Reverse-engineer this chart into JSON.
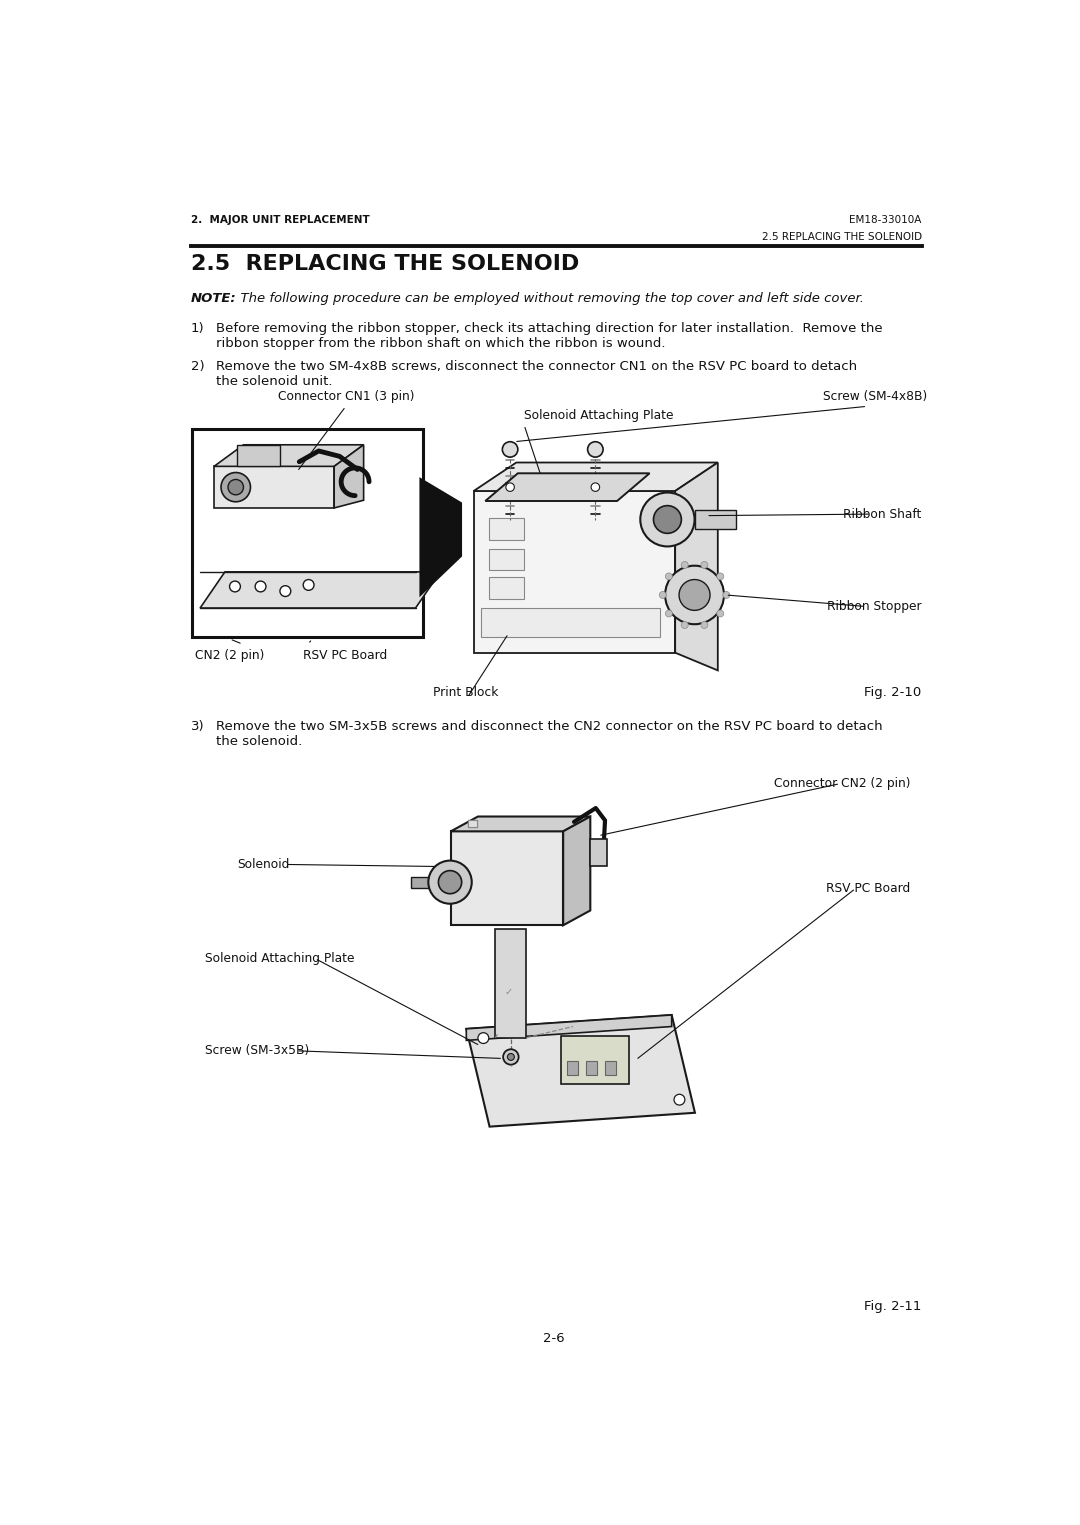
{
  "bg_color": "#ffffff",
  "page_width": 10.8,
  "page_height": 15.25,
  "header_left": "2.  MAJOR UNIT REPLACEMENT",
  "header_right": "EM18-33010A",
  "header_sub_right": "2.5 REPLACING THE SOLENOID",
  "section_title": "2.5  REPLACING THE SOLENOID",
  "note_bold": "NOTE:",
  "note_italic": "  The following procedure can be employed without removing the top cover and left side cover.",
  "step1_num": "1)",
  "step1_text": "Before removing the ribbon stopper, check its attaching direction for later installation.  Remove the\nribbon stopper from the ribbon shaft on which the ribbon is wound.",
  "step2_num": "2)",
  "step2_text": "Remove the two SM-4x8B screws, disconnect the connector CN1 on the RSV PC board to detach\nthe solenoid unit.",
  "fig1_caption": "Fig. 2-10",
  "lbl_cn1": "Connector CN1 (3 pin)",
  "lbl_screw4x8b": "Screw (SM-4x8B)",
  "lbl_sap1": "Solenoid Attaching Plate",
  "lbl_ribbon_shaft": "Ribbon Shaft",
  "lbl_ribbon_stopper": "Ribbon Stopper",
  "lbl_cn2_2pin": "CN2 (2 pin)",
  "lbl_rsv1": "RSV PC Board",
  "lbl_print_block": "Print Block",
  "step3_num": "3)",
  "step3_text": "Remove the two SM-3x5B screws and disconnect the CN2 connector on the RSV PC board to detach\nthe solenoid.",
  "fig2_caption": "Fig. 2-11",
  "lbl_solenoid": "Solenoid",
  "lbl_cn2_2pin2": "Connector CN2 (2 pin)",
  "lbl_sap2": "Solenoid Attaching Plate",
  "lbl_rsv2": "RSV PC Board",
  "lbl_screw3x5b": "Screw (SM-3x5B)",
  "page_num": "2-6"
}
